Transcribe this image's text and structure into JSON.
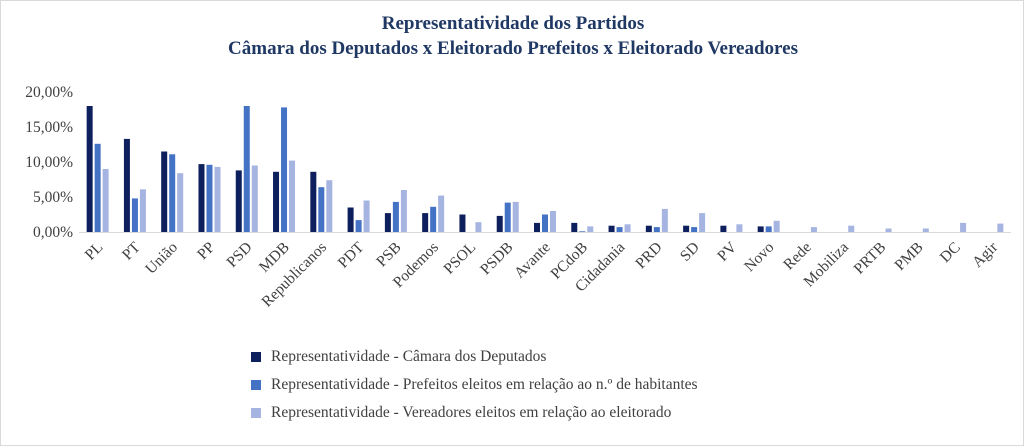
{
  "chart_data": {
    "type": "bar",
    "title": "Representatividade dos Partidos",
    "subtitle": "Câmara dos Deputados x Eleitorado Prefeitos x Eleitorado Vereadores",
    "categories": [
      "PL",
      "PT",
      "União",
      "PP",
      "PSD",
      "MDB",
      "Republicanos",
      "PDT",
      "PSB",
      "Podemos",
      "PSOL",
      "PSDB",
      "Avante",
      "PCdoB",
      "Cidadania",
      "PRD",
      "SD",
      "PV",
      "Novo",
      "Rede",
      "Mobiliza",
      "PRTB",
      "PMB",
      "DC",
      "Agir"
    ],
    "series": [
      {
        "name": "Representatividade - Câmara dos Deputados",
        "color": "#0d1f5c",
        "values": [
          18.0,
          13.3,
          11.5,
          9.7,
          8.8,
          8.6,
          8.6,
          3.5,
          2.7,
          2.7,
          2.5,
          2.3,
          1.3,
          1.3,
          0.9,
          0.9,
          0.9,
          0.9,
          0.8,
          0.0,
          0.0,
          0.0,
          0.0,
          0.0,
          0.0
        ]
      },
      {
        "name": "Representatividade - Prefeitos eleitos em relação ao n.º de habitantes",
        "color": "#4472c4",
        "values": [
          12.6,
          4.8,
          11.1,
          9.6,
          18.0,
          17.8,
          6.4,
          1.7,
          4.3,
          3.6,
          0.0,
          4.2,
          2.5,
          0.1,
          0.7,
          0.7,
          0.7,
          0.0,
          0.8,
          0.0,
          0.0,
          0.0,
          0.0,
          0.0,
          0.0
        ]
      },
      {
        "name": "Representatividade - Vereadores eleitos em relação ao eleitorado",
        "color": "#a5b4e0",
        "values": [
          9.0,
          6.1,
          8.4,
          9.3,
          9.5,
          10.2,
          7.4,
          4.5,
          6.0,
          5.2,
          1.4,
          4.3,
          3.0,
          0.8,
          1.1,
          3.3,
          2.7,
          1.1,
          1.6,
          0.7,
          0.9,
          0.5,
          0.5,
          1.3,
          1.2
        ]
      }
    ],
    "yticks": [
      "0,00%",
      "5,00%",
      "10,00%",
      "15,00%",
      "20,00%"
    ],
    "ylim": [
      0,
      20
    ],
    "grid": false,
    "legend_position": "bottom"
  }
}
